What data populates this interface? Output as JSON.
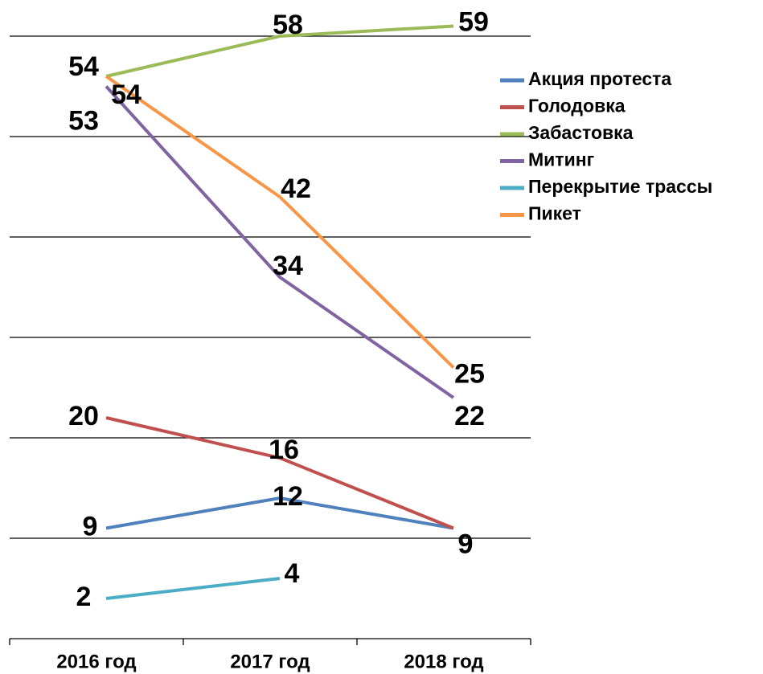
{
  "chart_data": {
    "type": "line",
    "categories": [
      "2016 год",
      "2017 год",
      "2018 год"
    ],
    "series": [
      {
        "name": "Акция протеста",
        "color": "#4f81bd",
        "values": [
          9,
          12,
          9
        ]
      },
      {
        "name": "Голодовка",
        "color": "#c0504d",
        "values": [
          20,
          16,
          9
        ]
      },
      {
        "name": "Забастовка",
        "color": "#9bbb59",
        "values": [
          54,
          58,
          59
        ]
      },
      {
        "name": "Митинг",
        "color": "#8064a2",
        "values": [
          53,
          34,
          22
        ]
      },
      {
        "name": "Перекрытие трассы",
        "color": "#4bacc6",
        "values": [
          2,
          4,
          null
        ]
      },
      {
        "name": "Пикет",
        "color": "#f79646",
        "values": [
          54,
          42,
          25
        ]
      }
    ],
    "ylim": [
      -2,
      58
    ],
    "yticks": [
      -2,
      8,
      18,
      28,
      38,
      48,
      58
    ],
    "grid": true,
    "legend": "right"
  }
}
